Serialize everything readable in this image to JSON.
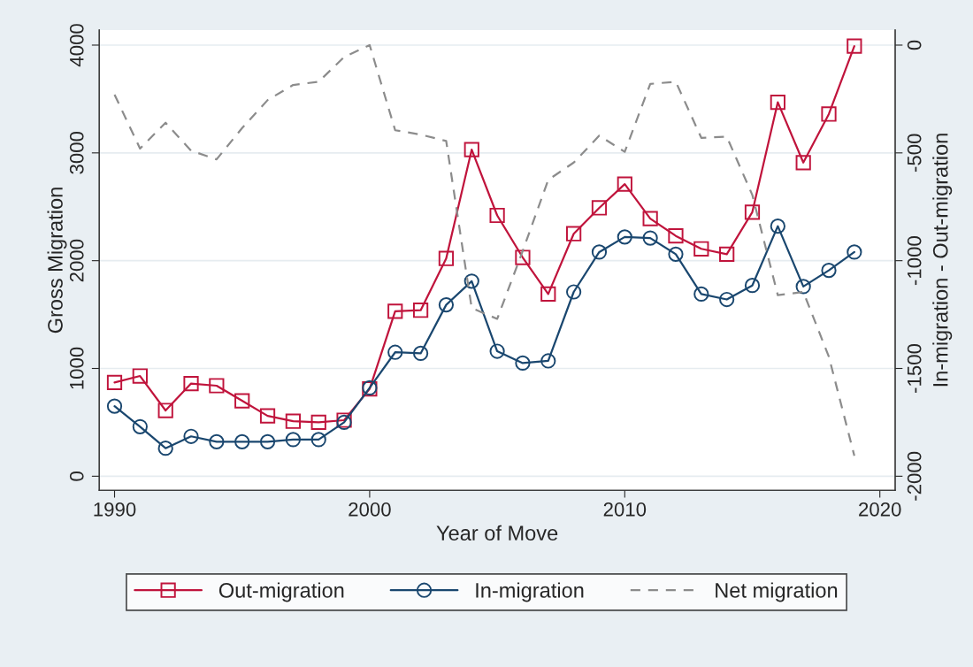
{
  "chart_data": {
    "type": "line",
    "xlabel": "Year of Move",
    "ylabel": "Gross Migration",
    "y2label": "In-migration - Out-migration",
    "x": [
      1990,
      1991,
      1992,
      1993,
      1994,
      1995,
      1996,
      1997,
      1998,
      1999,
      2000,
      2001,
      2002,
      2003,
      2004,
      2005,
      2006,
      2007,
      2008,
      2009,
      2010,
      2011,
      2012,
      2013,
      2014,
      2015,
      2016,
      2017,
      2018,
      2019
    ],
    "series": [
      {
        "name": "Out-migration",
        "color": "#c0143c",
        "marker": "square",
        "line_style": "solid",
        "values": [
          870,
          930,
          610,
          860,
          840,
          700,
          560,
          510,
          500,
          520,
          810,
          1530,
          1540,
          2020,
          3030,
          2420,
          2030,
          1690,
          2250,
          2490,
          2710,
          2390,
          2230,
          2110,
          2060,
          2450,
          3470,
          2910,
          3360,
          3990
        ]
      },
      {
        "name": "In-migration",
        "color": "#1a476f",
        "marker": "circle",
        "line_style": "solid",
        "values": [
          650,
          460,
          260,
          370,
          320,
          320,
          320,
          340,
          340,
          500,
          820,
          1150,
          1140,
          1590,
          1810,
          1160,
          1050,
          1070,
          1710,
          2080,
          2220,
          2210,
          2060,
          1690,
          1640,
          1770,
          2320,
          1760,
          1910,
          2080
        ]
      },
      {
        "name": "Net migration",
        "color": "#8c8c8c",
        "marker": "none",
        "line_style": "dashed",
        "axis": "y2",
        "values": [
          -230,
          -480,
          -360,
          -490,
          -530,
          -385,
          -255,
          -185,
          -170,
          -55,
          0,
          -395,
          -415,
          -445,
          -1220,
          -1270,
          -955,
          -625,
          -545,
          -420,
          -495,
          -180,
          -170,
          -430,
          -425,
          -695,
          -1160,
          -1145,
          -1445,
          -1905
        ]
      }
    ],
    "xlim": [
      1989.4,
      2020.6
    ],
    "xticks": [
      1990,
      2000,
      2010,
      2020
    ],
    "ylim": [
      -130,
      4140
    ],
    "yticks": [
      0,
      1000,
      2000,
      3000,
      4000
    ],
    "y2lim": [
      -2065,
      70
    ],
    "y2ticks": [
      -2000,
      -1500,
      -1000,
      -500,
      0
    ],
    "grid": "y",
    "legend": "bottom"
  }
}
